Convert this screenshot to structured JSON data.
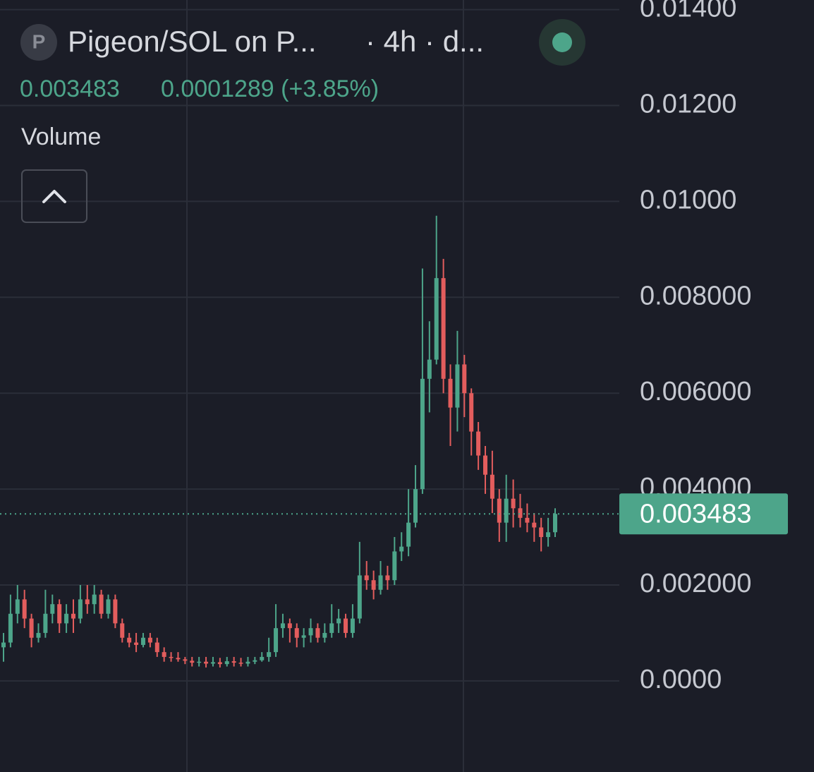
{
  "header": {
    "icon": "P",
    "title": "Pigeon/SOL on P...",
    "subtitle": "· 4h · d...",
    "change": "0.0001289 (+3.85%)",
    "indicator": "Volume"
  },
  "chart_data": {
    "type": "candlestick",
    "up_color": "#4da58a",
    "down_color": "#e35d5d",
    "grid": true,
    "ylim": [
      -0.0019,
      0.0142
    ],
    "yticks": [
      {
        "value": 0,
        "label": "0.0000"
      },
      {
        "value": 0.002,
        "label": "0.002000"
      },
      {
        "value": 0.004,
        "label": "0.004000"
      },
      {
        "value": 0.006,
        "label": "0.006000"
      },
      {
        "value": 0.008,
        "label": "0.008000"
      },
      {
        "value": 0.01,
        "label": "0.01000"
      },
      {
        "value": 0.012,
        "label": "0.01200"
      },
      {
        "value": 0.014,
        "label": "0.01400"
      }
    ],
    "open": [
      0.0007,
      0.0008,
      0.0014,
      0.0017,
      0.0013,
      0.0009,
      0.001,
      0.0014,
      0.0016,
      0.0012,
      0.0014,
      0.0013,
      0.0017,
      0.0016,
      0.0018,
      0.0014,
      0.0017,
      0.0012,
      0.0009,
      0.0008,
      0.00075,
      0.0009,
      0.0008,
      0.0006,
      0.0005,
      0.00048,
      0.00045,
      0.00042,
      0.00038,
      0.0004,
      0.00036,
      0.00039,
      0.00035,
      0.00041,
      0.00038,
      0.00036,
      0.0004,
      0.00043,
      0.0005,
      0.0006,
      0.0011,
      0.0012,
      0.0011,
      0.0009,
      0.00095,
      0.0011,
      0.0009,
      0.001,
      0.0012,
      0.0013,
      0.001,
      0.0013,
      0.0022,
      0.0021,
      0.0019,
      0.0022,
      0.0021,
      0.0027,
      0.0028,
      0.0033,
      0.004,
      0.0063,
      0.0067,
      0.0084,
      0.0063,
      0.0057,
      0.0066,
      0.006,
      0.0052,
      0.0047,
      0.0043,
      0.0038,
      0.0033,
      0.0038,
      0.0036,
      0.0034,
      0.0033,
      0.0032,
      0.003,
      0.0031
    ],
    "high": [
      0.001,
      0.0018,
      0.002,
      0.0019,
      0.0014,
      0.0012,
      0.0019,
      0.0018,
      0.0017,
      0.0016,
      0.0017,
      0.002,
      0.002,
      0.002,
      0.0019,
      0.0018,
      0.0018,
      0.0013,
      0.001,
      0.001,
      0.001,
      0.001,
      0.0009,
      0.0007,
      0.0006,
      0.0006,
      0.0005,
      0.0005,
      0.0005,
      0.0005,
      0.0005,
      0.00048,
      0.0005,
      0.0005,
      0.00048,
      0.0005,
      0.0005,
      0.0006,
      0.0009,
      0.0016,
      0.0014,
      0.0013,
      0.0012,
      0.0011,
      0.0013,
      0.0012,
      0.0012,
      0.0016,
      0.0015,
      0.0014,
      0.0016,
      0.0029,
      0.0025,
      0.0023,
      0.0025,
      0.0024,
      0.003,
      0.0031,
      0.004,
      0.0045,
      0.0086,
      0.0075,
      0.0097,
      0.0088,
      0.0066,
      0.0073,
      0.0068,
      0.0061,
      0.0054,
      0.0049,
      0.0048,
      0.004,
      0.0043,
      0.0042,
      0.0039,
      0.0037,
      0.0035,
      0.0034,
      0.0034,
      0.0036
    ],
    "low": [
      0.0004,
      0.0007,
      0.0012,
      0.0011,
      0.0007,
      0.0008,
      0.0009,
      0.0012,
      0.001,
      0.001,
      0.001,
      0.0012,
      0.0014,
      0.0014,
      0.0013,
      0.0013,
      0.0011,
      0.0008,
      0.0007,
      0.0006,
      0.0007,
      0.0007,
      0.0005,
      0.0004,
      0.0004,
      0.0004,
      0.00035,
      0.0003,
      0.0003,
      0.00028,
      0.0003,
      0.00028,
      0.0003,
      0.0003,
      0.0003,
      0.0003,
      0.00035,
      0.0004,
      0.0004,
      0.0005,
      0.0009,
      0.0008,
      0.0007,
      0.0007,
      0.0008,
      0.0008,
      0.0008,
      0.0009,
      0.001,
      0.0009,
      0.0009,
      0.0012,
      0.0019,
      0.0017,
      0.0018,
      0.0019,
      0.002,
      0.0025,
      0.0026,
      0.0032,
      0.0039,
      0.0056,
      0.0066,
      0.006,
      0.0049,
      0.0052,
      0.0055,
      0.0047,
      0.0044,
      0.0039,
      0.0035,
      0.0029,
      0.0029,
      0.0032,
      0.0032,
      0.0031,
      0.0029,
      0.0027,
      0.0028,
      0.003
    ],
    "close": [
      0.0008,
      0.0014,
      0.0017,
      0.0013,
      0.0009,
      0.001,
      0.0014,
      0.0016,
      0.0012,
      0.0014,
      0.0013,
      0.0017,
      0.0016,
      0.0018,
      0.0014,
      0.0017,
      0.0012,
      0.0009,
      0.0008,
      0.00075,
      0.0009,
      0.0008,
      0.0006,
      0.0005,
      0.00048,
      0.00045,
      0.00042,
      0.00038,
      0.0004,
      0.00036,
      0.00039,
      0.00035,
      0.00041,
      0.00038,
      0.00036,
      0.0004,
      0.00043,
      0.0005,
      0.0006,
      0.0011,
      0.0012,
      0.0011,
      0.0009,
      0.00095,
      0.0011,
      0.0009,
      0.001,
      0.0012,
      0.0013,
      0.001,
      0.0013,
      0.0022,
      0.0021,
      0.0019,
      0.0022,
      0.0021,
      0.0027,
      0.0028,
      0.0033,
      0.004,
      0.0063,
      0.0067,
      0.0084,
      0.0063,
      0.0057,
      0.0066,
      0.006,
      0.0052,
      0.0047,
      0.0043,
      0.0038,
      0.0033,
      0.0038,
      0.0036,
      0.0034,
      0.0033,
      0.0032,
      0.003,
      0.0031,
      0.003483
    ]
  }
}
